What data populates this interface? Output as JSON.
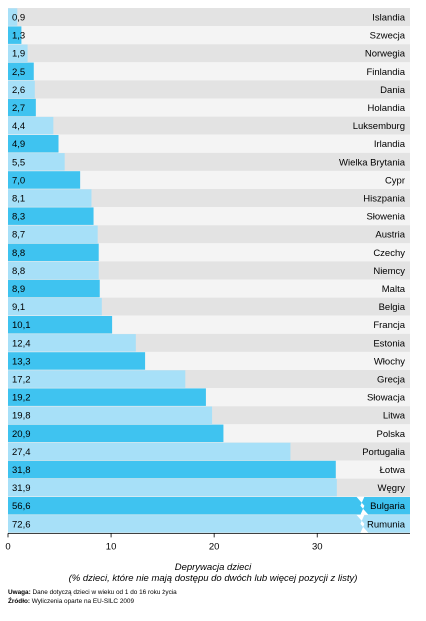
{
  "chart_data": {
    "type": "bar",
    "orientation": "horizontal",
    "categories": [
      "Islandia",
      "Szwecja",
      "Norwegia",
      "Finlandia",
      "Dania",
      "Holandia",
      "Luksemburg",
      "Irlandia",
      "Wielka Brytania",
      "Cypr",
      "Hiszpania",
      "Słowenia",
      "Austria",
      "Czechy",
      "Niemcy",
      "Malta",
      "Belgia",
      "Francja",
      "Estonia",
      "Włochy",
      "Grecja",
      "Słowacja",
      "Litwa",
      "Polska",
      "Portugalia",
      "Łotwa",
      "Węgry",
      "Bulgaria",
      "Rumunia"
    ],
    "values": [
      0.9,
      1.3,
      1.9,
      2.5,
      2.6,
      2.7,
      4.4,
      4.9,
      5.5,
      7.0,
      8.1,
      8.3,
      8.7,
      8.8,
      8.8,
      8.9,
      9.1,
      10.1,
      12.4,
      13.3,
      17.2,
      19.2,
      19.8,
      20.9,
      27.4,
      31.8,
      31.9,
      56.6,
      72.6
    ],
    "value_labels": [
      "0,9",
      "1,3",
      "1,9",
      "2,5",
      "2,6",
      "2,7",
      "4,4",
      "4,9",
      "5,5",
      "7,0",
      "8,1",
      "8,3",
      "8,7",
      "8,8",
      "8,8",
      "8,9",
      "9,1",
      "10,1",
      "12,4",
      "13,3",
      "17,2",
      "19,2",
      "19,8",
      "20,9",
      "27,4",
      "31,8",
      "31,9",
      "56,6",
      "72,6"
    ],
    "highlighted": [
      false,
      true,
      false,
      true,
      false,
      true,
      false,
      true,
      false,
      true,
      false,
      true,
      false,
      true,
      false,
      true,
      false,
      true,
      false,
      true,
      false,
      true,
      false,
      true,
      false,
      true,
      false,
      true,
      false
    ],
    "broken_axis_categories": [
      "Bulgaria",
      "Rumunia"
    ],
    "xlim": [
      0,
      39
    ],
    "xticks": [
      0,
      10,
      20,
      30
    ],
    "xlabel_line1": "Deprywacja dzieci",
    "xlabel_line2": "(% dzieci, które nie mają dostępu do dwóch lub więcej pozycji z listy)",
    "grid": false,
    "legend": "none"
  },
  "colors": {
    "bar_dark": "#3fc3f0",
    "bar_light": "#a7e0f8",
    "row_grey": "#e3e3e3",
    "row_white": "#f4f4f4",
    "break_mark": "#ffffff"
  },
  "notes": {
    "uwaga_label": "Uwaga:",
    "uwaga_text": "Dane dotyczą dzieci w wieku od 1 do 16 roku życia",
    "zrodlo_label": "Źródło:",
    "zrodlo_text": "Wyliczenia oparte na EU-SILC 2009"
  }
}
